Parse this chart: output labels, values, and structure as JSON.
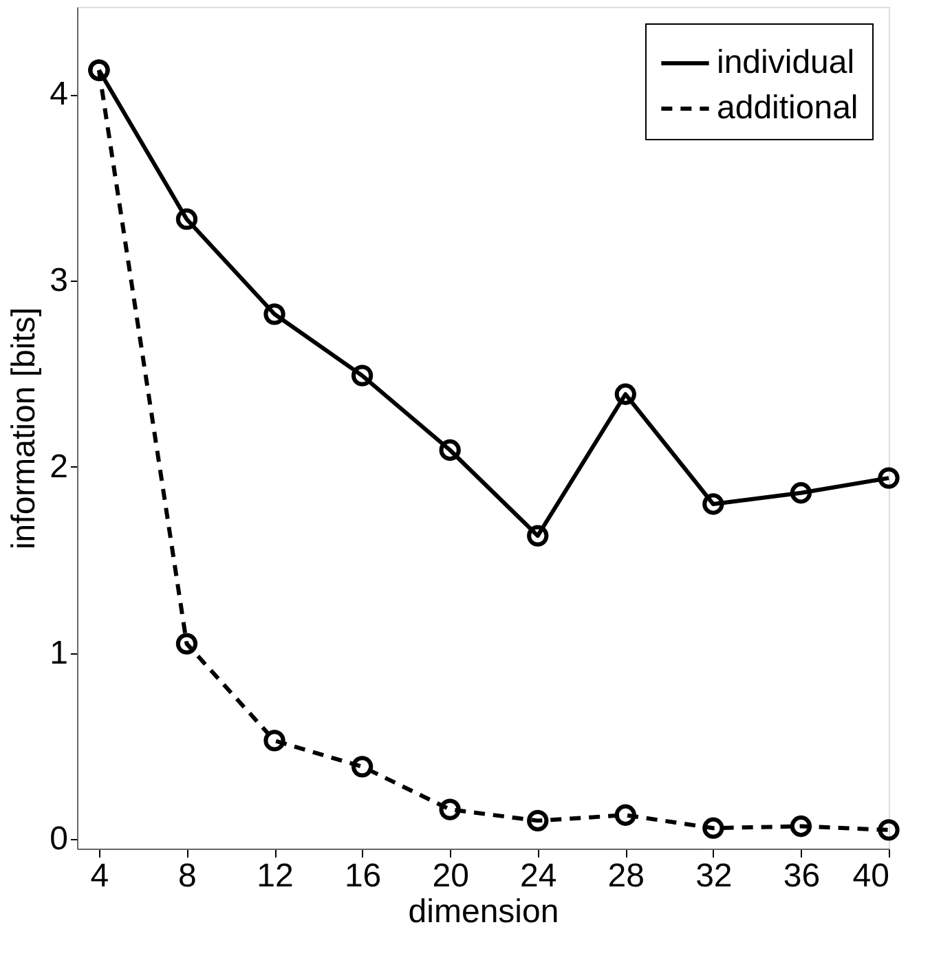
{
  "chart_data": {
    "type": "line",
    "xlabel": "dimension",
    "ylabel": "information [bits]",
    "x": [
      4,
      8,
      12,
      16,
      20,
      24,
      28,
      32,
      36,
      40
    ],
    "series": [
      {
        "name": "individual",
        "color": "#000000",
        "line_style": "solid",
        "values": [
          4.13,
          3.33,
          2.82,
          2.49,
          2.09,
          1.63,
          2.39,
          1.8,
          1.86,
          1.94
        ]
      },
      {
        "name": "additional",
        "color": "#000000",
        "line_style": "dashed",
        "values": [
          4.13,
          1.05,
          0.53,
          0.39,
          0.16,
          0.1,
          0.13,
          0.06,
          0.07,
          0.05
        ]
      }
    ],
    "xlim": [
      3,
      40
    ],
    "xticks": [
      4,
      8,
      12,
      16,
      20,
      24,
      28,
      32,
      36,
      40
    ],
    "ylim": [
      -0.05,
      4.47
    ],
    "yticks": [
      0,
      1,
      2,
      3,
      4
    ],
    "marker": "circle",
    "grid": false,
    "legend": "top right"
  }
}
